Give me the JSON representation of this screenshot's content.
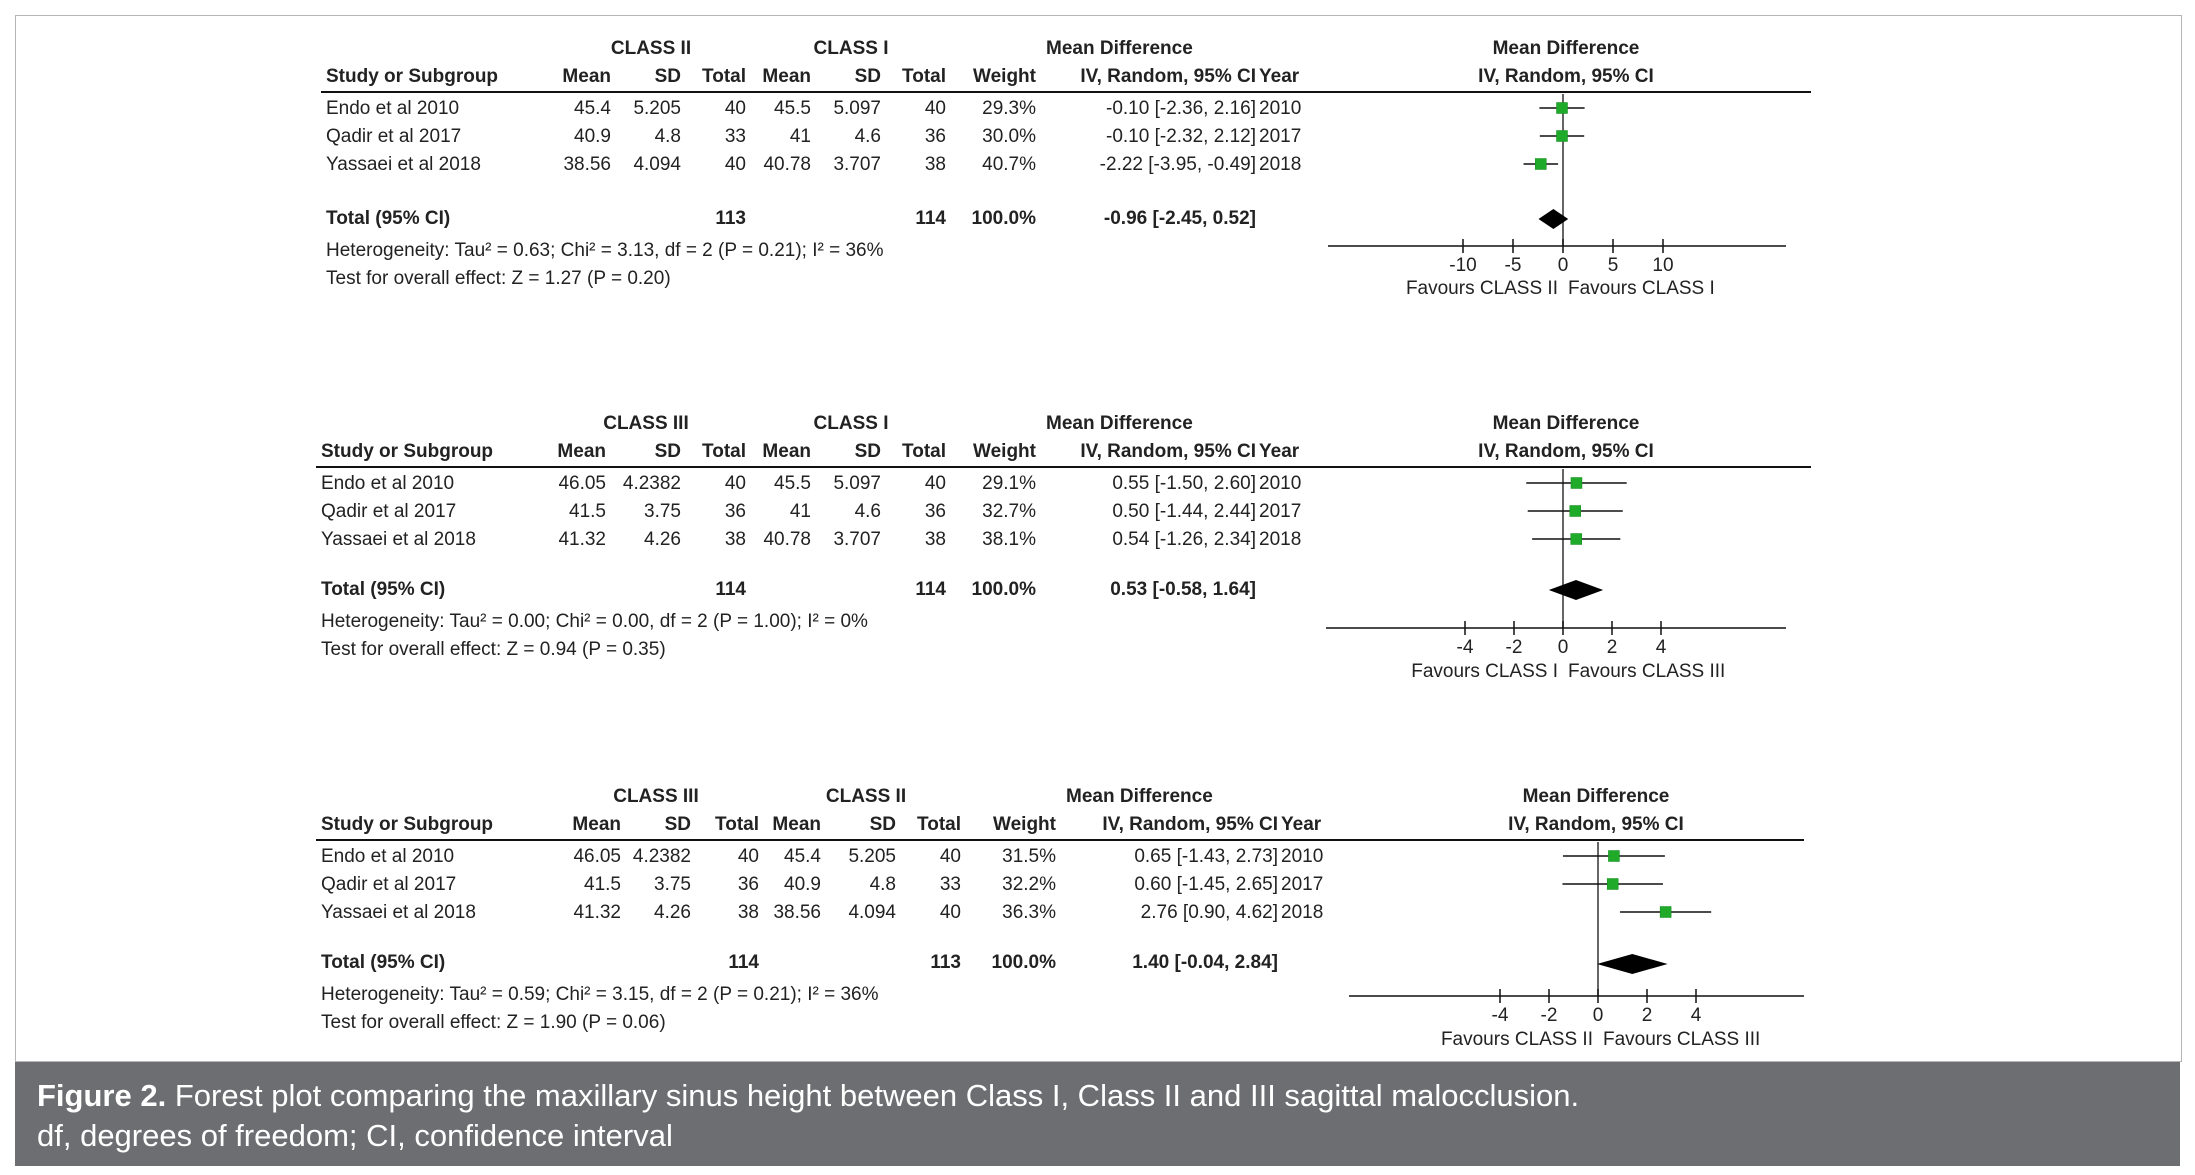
{
  "caption": {
    "label": "Figure 2.",
    "text": " Forest plot comparing the maxillary sinus height between Class I, Class II and III sagittal malocclusion.",
    "line2": "df, degrees of freedom; CI, confidence interval"
  },
  "chart_data": [
    {
      "type": "forest",
      "group1": "CLASS II",
      "group2": "CLASS I",
      "md_header": "Mean Difference",
      "md_sub": "IV, Random, 95% CI",
      "columns": [
        "Study or Subgroup",
        "Mean",
        "SD",
        "Total",
        "Mean",
        "SD",
        "Total",
        "Weight",
        "IV, Random, 95% CI",
        "Year"
      ],
      "studies": [
        {
          "name": "Endo et al 2010",
          "mean1": "45.4",
          "sd1": "5.205",
          "n1": "40",
          "mean2": "45.5",
          "sd2": "5.097",
          "n2": "40",
          "weight": "29.3%",
          "ci": "-0.10 [-2.36, 2.16]",
          "year": "2010",
          "est": -0.1,
          "lo": -2.36,
          "hi": 2.16
        },
        {
          "name": "Qadir et al 2017",
          "mean1": "40.9",
          "sd1": "4.8",
          "n1": "33",
          "mean2": "41",
          "sd2": "4.6",
          "n2": "36",
          "weight": "30.0%",
          "ci": "-0.10 [-2.32, 2.12]",
          "year": "2017",
          "est": -0.1,
          "lo": -2.32,
          "hi": 2.12
        },
        {
          "name": "Yassaei et al 2018",
          "mean1": "38.56",
          "sd1": "4.094",
          "n1": "40",
          "mean2": "40.78",
          "sd2": "3.707",
          "n2": "38",
          "weight": "40.7%",
          "ci": "-2.22 [-3.95, -0.49]",
          "year": "2018",
          "est": -2.22,
          "lo": -3.95,
          "hi": -0.49
        }
      ],
      "total": {
        "label": "Total (95% CI)",
        "n1": "113",
        "n2": "114",
        "weight": "100.0%",
        "ci": "-0.96 [-2.45, 0.52]",
        "est": -0.96,
        "lo": -2.45,
        "hi": 0.52
      },
      "heterogeneity": "Heterogeneity: Tau² = 0.63; Chi² = 3.13, df = 2 (P = 0.21); I² = 36%",
      "overall": "Test for overall effect: Z = 1.27 (P = 0.20)",
      "xlim": [
        -15,
        15
      ],
      "ticks": [
        -10,
        -5,
        0,
        5,
        10
      ],
      "tick_labels": [
        "-10",
        "-5",
        "0",
        "5",
        "10"
      ],
      "favours_left": "Favours CLASS II",
      "favours_right": "Favours CLASS I"
    },
    {
      "type": "forest",
      "group1": "CLASS III",
      "group2": "CLASS I",
      "md_header": "Mean Difference",
      "md_sub": "IV, Random, 95% CI",
      "columns": [
        "Study or Subgroup",
        "Mean",
        "SD",
        "Total",
        "Mean",
        "SD",
        "Total",
        "Weight",
        "IV, Random, 95% CI",
        "Year"
      ],
      "studies": [
        {
          "name": "Endo et al 2010",
          "mean1": "46.05",
          "sd1": "4.2382",
          "n1": "40",
          "mean2": "45.5",
          "sd2": "5.097",
          "n2": "40",
          "weight": "29.1%",
          "ci": "0.55 [-1.50, 2.60]",
          "year": "2010",
          "est": 0.55,
          "lo": -1.5,
          "hi": 2.6
        },
        {
          "name": "Qadir et al 2017",
          "mean1": "41.5",
          "sd1": "3.75",
          "n1": "36",
          "mean2": "41",
          "sd2": "4.6",
          "n2": "36",
          "weight": "32.7%",
          "ci": "0.50 [-1.44, 2.44]",
          "year": "2017",
          "est": 0.5,
          "lo": -1.44,
          "hi": 2.44
        },
        {
          "name": "Yassaei et al 2018",
          "mean1": "41.32",
          "sd1": "4.26",
          "n1": "38",
          "mean2": "40.78",
          "sd2": "3.707",
          "n2": "38",
          "weight": "38.1%",
          "ci": "0.54 [-1.26, 2.34]",
          "year": "2018",
          "est": 0.54,
          "lo": -1.26,
          "hi": 2.34
        }
      ],
      "total": {
        "label": "Total (95% CI)",
        "n1": "114",
        "n2": "114",
        "weight": "100.0%",
        "ci": "0.53 [-0.58, 1.64]",
        "est": 0.53,
        "lo": -0.58,
        "hi": 1.64
      },
      "heterogeneity": "Heterogeneity: Tau² = 0.00; Chi² = 0.00, df = 2 (P = 1.00); I² = 0%",
      "overall": "Test for overall effect: Z = 0.94 (P = 0.35)",
      "xlim": [
        -9.5,
        9.5
      ],
      "ticks": [
        -4,
        -2,
        0,
        2,
        4
      ],
      "tick_labels": [
        "-4",
        "-2",
        "0",
        "2",
        "4"
      ],
      "favours_left": "Favours CLASS I",
      "favours_right": "Favours CLASS III"
    },
    {
      "type": "forest",
      "group1": "CLASS III",
      "group2": "CLASS II",
      "md_header": "Mean Difference",
      "md_sub": "IV, Random, 95% CI",
      "columns": [
        "Study or Subgroup",
        "Mean",
        "SD",
        "Total",
        "Mean",
        "SD",
        "Total",
        "Weight",
        "IV, Random, 95% CI",
        "Year"
      ],
      "studies": [
        {
          "name": "Endo et al 2010",
          "mean1": "46.05",
          "sd1": "4.2382",
          "n1": "40",
          "mean2": "45.4",
          "sd2": "5.205",
          "n2": "40",
          "weight": "31.5%",
          "ci": "0.65 [-1.43, 2.73]",
          "year": "2010",
          "est": 0.65,
          "lo": -1.43,
          "hi": 2.73
        },
        {
          "name": "Qadir et al 2017",
          "mean1": "41.5",
          "sd1": "3.75",
          "n1": "36",
          "mean2": "40.9",
          "sd2": "4.8",
          "n2": "33",
          "weight": "32.2%",
          "ci": "0.60 [-1.45, 2.65]",
          "year": "2017",
          "est": 0.6,
          "lo": -1.45,
          "hi": 2.65
        },
        {
          "name": "Yassaei et al 2018",
          "mean1": "41.32",
          "sd1": "4.26",
          "n1": "38",
          "mean2": "38.56",
          "sd2": "4.094",
          "n2": "40",
          "weight": "36.3%",
          "ci": "2.76 [0.90, 4.62]",
          "year": "2018",
          "est": 2.76,
          "lo": 0.9,
          "hi": 4.62
        }
      ],
      "total": {
        "label": "Total (95% CI)",
        "n1": "114",
        "n2": "113",
        "weight": "100.0%",
        "ci": "1.40 [-0.04, 2.84]",
        "est": 1.4,
        "lo": -0.04,
        "hi": 2.84
      },
      "heterogeneity": "Heterogeneity: Tau² = 0.59; Chi² = 3.15, df = 2 (P = 0.21); I² = 36%",
      "overall": "Test for overall effect: Z = 1.90 (P = 0.06)",
      "xlim": [
        -9.5,
        9.5
      ],
      "ticks": [
        -4,
        -2,
        0,
        2,
        4
      ],
      "tick_labels": [
        "-4",
        "-2",
        "0",
        "2",
        "4"
      ],
      "favours_left": "Favours CLASS II",
      "favours_right": "Favours CLASS III"
    }
  ]
}
